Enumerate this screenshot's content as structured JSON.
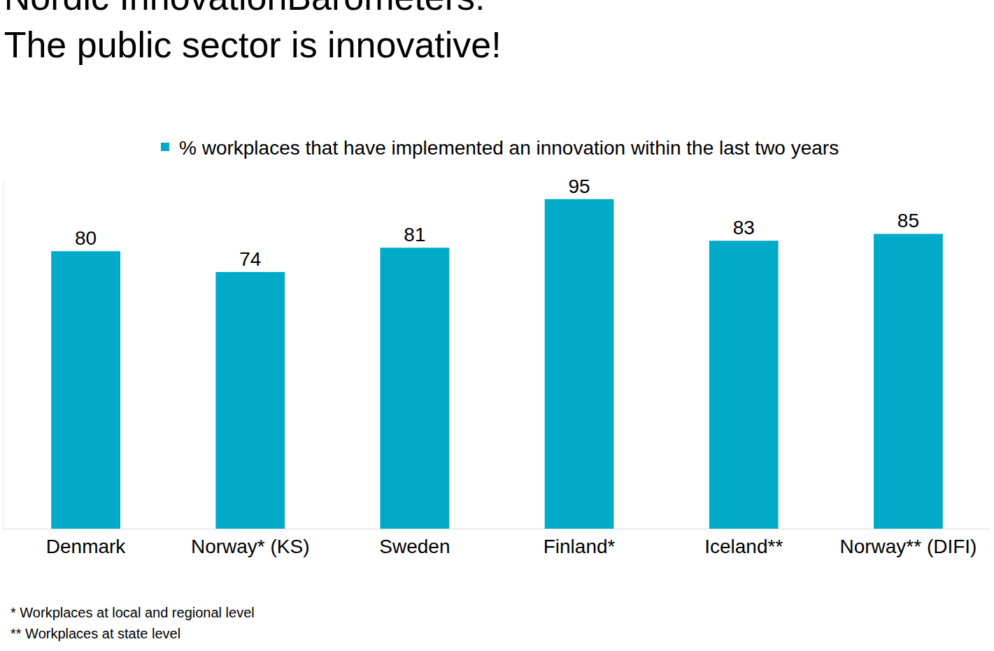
{
  "chart_data": {
    "type": "bar",
    "title": "Nordic InnovationBarometers:\nThe public sector is innovative!",
    "categories": [
      "Denmark",
      "Norway* (KS)",
      "Sweden",
      "Finland*",
      "Iceland**",
      "Norway** (DIFI)"
    ],
    "series": [
      {
        "name": "% workplaces that have implemented an innovation within the last two years",
        "color": "#00aac8",
        "values": [
          80,
          74,
          81,
          95,
          83,
          85
        ]
      }
    ],
    "ylim": [
      0,
      100
    ],
    "yticks": [],
    "grid": false,
    "legend": "top",
    "data_labels": true,
    "tick_labels": "x",
    "annotations": [
      "* Workplaces at local and regional level",
      "** Workplaces at state level"
    ]
  }
}
